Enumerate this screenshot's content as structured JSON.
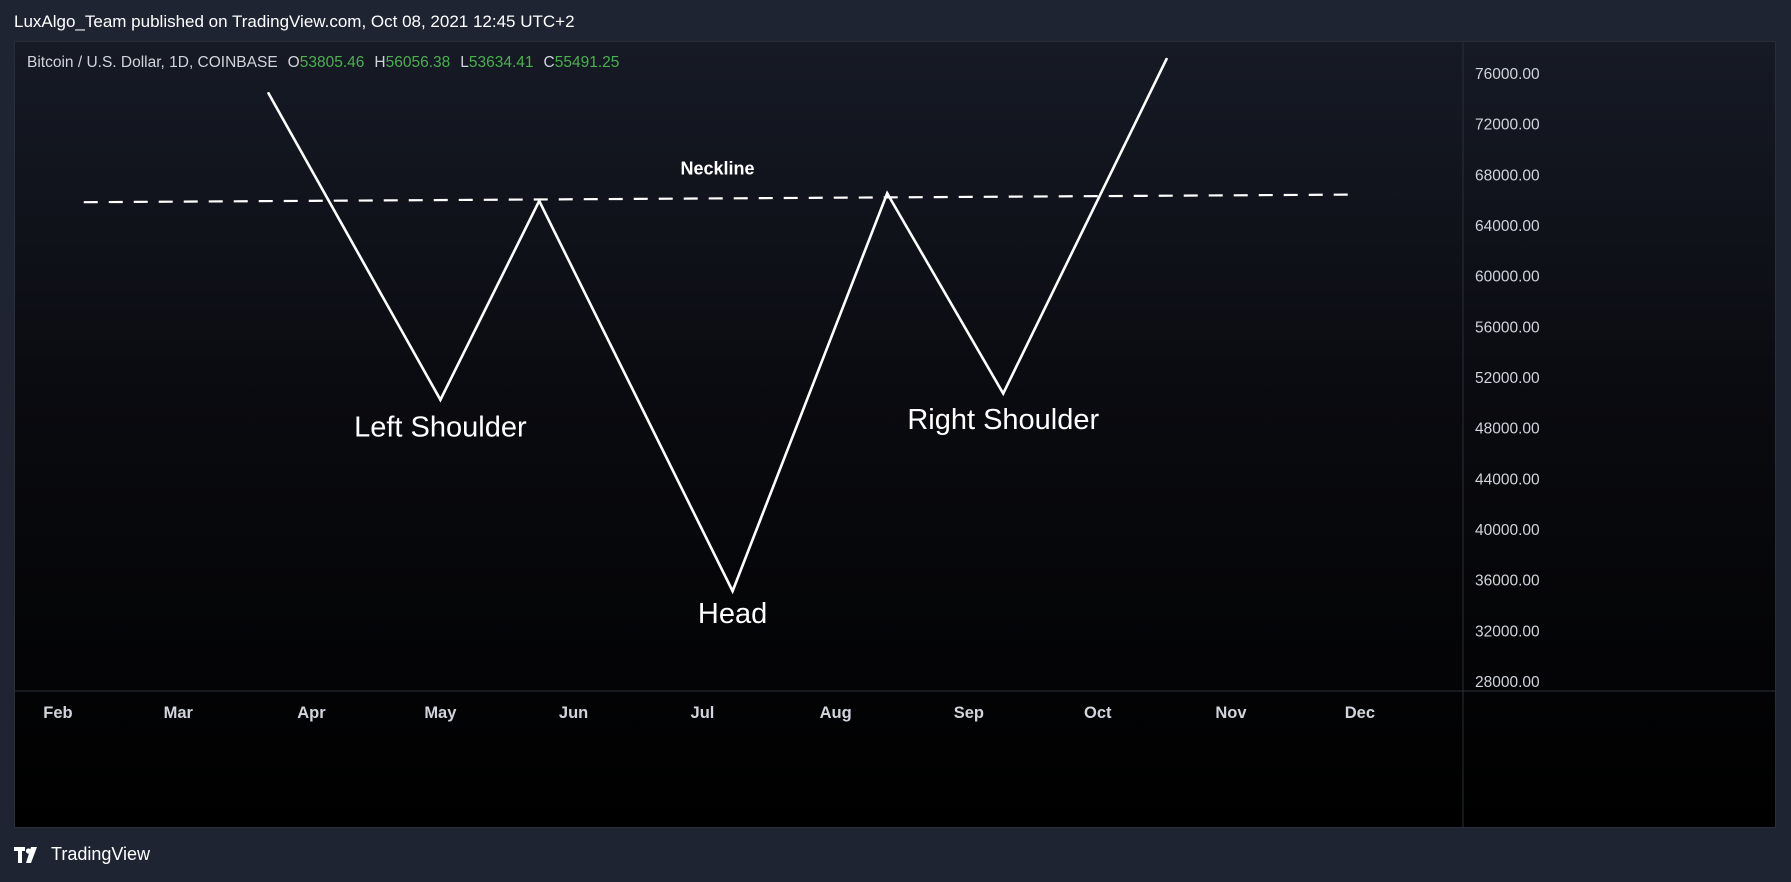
{
  "header": {
    "publisher_line": "LuxAlgo_Team published on TradingView.com, Oct 08, 2021 12:45 UTC+2"
  },
  "legend": {
    "symbol": "Bitcoin / U.S. Dollar, 1D, COINBASE",
    "open_label": "O",
    "open": "53805.46",
    "high_label": "H",
    "high": "56056.38",
    "low_label": "L",
    "low": "53634.41",
    "close_label": "C",
    "close": "55491.25",
    "value_color": "#4caf50"
  },
  "footer": {
    "brand": "TradingView"
  },
  "chart_data": {
    "type": "line",
    "x_ticks": [
      "Feb",
      "Mar",
      "Apr",
      "May",
      "Jun",
      "Jul",
      "Aug",
      "Sep",
      "Oct",
      "Nov",
      "Dec"
    ],
    "y_ticks": [
      "76000.00",
      "72000.00",
      "68000.00",
      "64000.00",
      "60000.00",
      "56000.00",
      "52000.00",
      "48000.00",
      "44000.00",
      "40000.00",
      "36000.00",
      "32000.00",
      "28000.00"
    ],
    "ylim": [
      28000,
      76000
    ],
    "xlim": [
      "2021-01-22",
      "2021-12-25"
    ],
    "grid": false,
    "series": [
      {
        "points": [
          {
            "x": "2021-03-22",
            "y": 74400
          },
          {
            "x": "2021-05-01",
            "y": 50200
          },
          {
            "x": "2021-05-24",
            "y": 65900
          },
          {
            "x": "2021-07-08",
            "y": 35100
          },
          {
            "x": "2021-08-13",
            "y": 66500
          },
          {
            "x": "2021-09-09",
            "y": 50700
          },
          {
            "x": "2021-10-17",
            "y": 77100
          }
        ],
        "color": "#ffffff"
      }
    ],
    "neckline": {
      "label": "Neckline",
      "start": {
        "x": "2021-02-07",
        "y": 65800
      },
      "end": {
        "x": "2021-11-29",
        "y": 66400
      },
      "color": "#ffffff"
    },
    "annotations": [
      {
        "text": "Left Shoulder",
        "x": "2021-05-01",
        "y": 48000
      },
      {
        "text": "Head",
        "x": "2021-07-08",
        "y": 33300
      },
      {
        "text": "Right Shoulder",
        "x": "2021-09-09",
        "y": 48600
      }
    ],
    "axis_color": "#d1d4dc"
  }
}
